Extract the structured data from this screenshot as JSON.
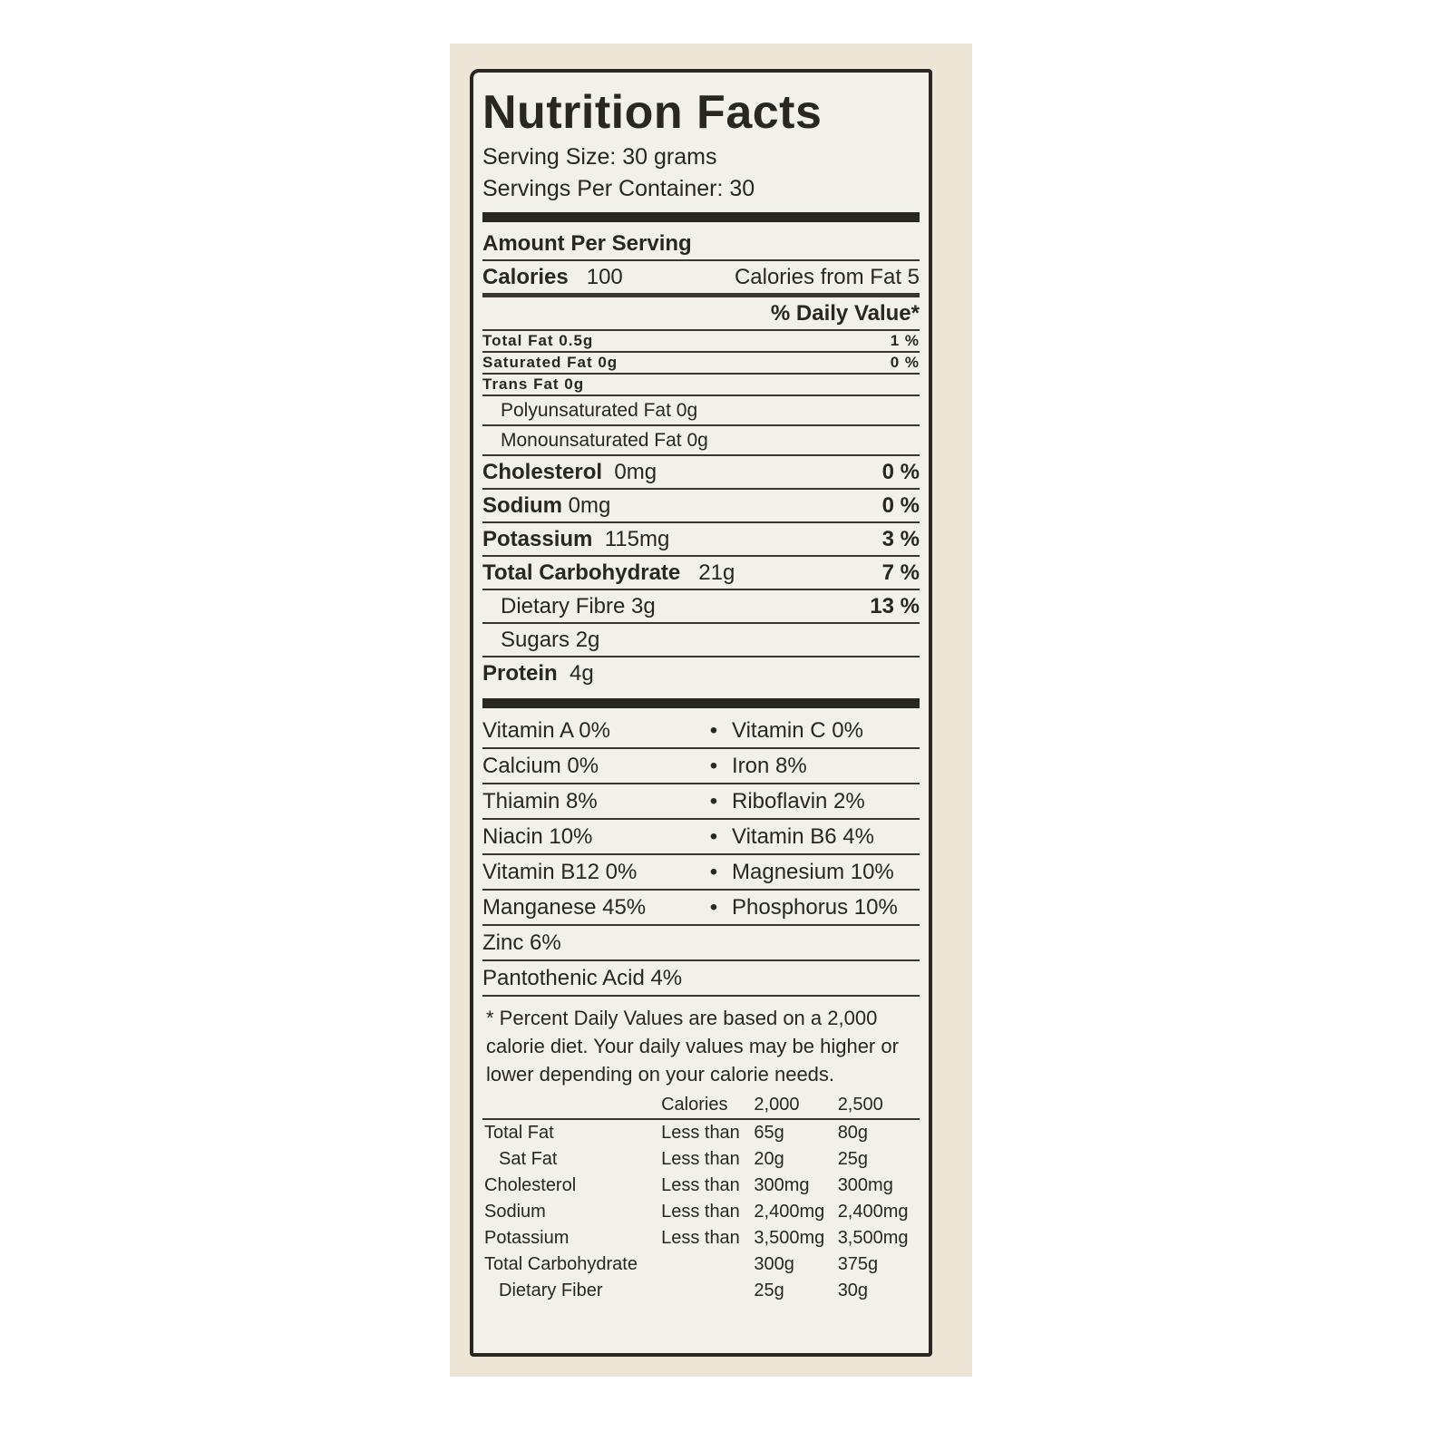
{
  "title": "Nutrition Facts",
  "serving_size": "Serving Size:  30 grams",
  "servings_per_container": "Servings Per Container: 30",
  "amount_per_serving": "Amount Per Serving",
  "calories_label": "Calories",
  "calories_value": "100",
  "calories_from_fat": "Calories from Fat 5",
  "daily_value_header": "% Daily Value*",
  "nutrients": [
    {
      "name": "Total Fat 0.5g",
      "dv": "1 %"
    },
    {
      "name": "Saturated Fat 0g",
      "dv": "0 %"
    },
    {
      "name": "Trans  Fat 0g",
      "dv": ""
    },
    {
      "name": "Polyunsaturated Fat 0g",
      "dv": ""
    },
    {
      "name": "Monounsaturated Fat 0g",
      "dv": ""
    },
    {
      "name": "Cholesterol",
      "amount": "0mg",
      "dv": "0 %"
    },
    {
      "name": "Sodium",
      "amount": "0mg",
      "dv": "0 %"
    },
    {
      "name": "Potassium",
      "amount": "115mg",
      "dv": "3 %"
    },
    {
      "name": "Total Carbohydrate",
      "amount": "21g",
      "dv": "7 %"
    },
    {
      "name": "Dietary Fibre 3g",
      "dv": "13 %"
    },
    {
      "name": "Sugars 2g",
      "dv": ""
    },
    {
      "name": "Protein",
      "amount": "4g",
      "dv": ""
    }
  ],
  "bullet": "•",
  "vitamins": [
    [
      "Vitamin A  0%",
      "Vitamin C 0%"
    ],
    [
      "Calcium 0%",
      "Iron 8%"
    ],
    [
      "Thiamin 8%",
      "Riboflavin 2%"
    ],
    [
      "Niacin 10%",
      "Vitamin B6 4%"
    ],
    [
      "Vitamin B12 0%",
      "Magnesium 10%"
    ],
    [
      "Manganese 45%",
      "Phosphorus 10%"
    ],
    [
      "Zinc     6%",
      ""
    ],
    [
      "Pantothenic Acid 4%",
      ""
    ]
  ],
  "footnote": "* Percent Daily Values are based on a 2,000 calorie diet. Your daily values may be higher or lower depending on your calorie needs.",
  "reference_table": {
    "headers": [
      "",
      "Calories",
      "2,000",
      "2,500"
    ],
    "rows": [
      [
        "Total Fat",
        "Less than",
        "65g",
        "80g"
      ],
      [
        "Sat Fat",
        "Less than",
        "20g",
        "25g"
      ],
      [
        "Cholesterol",
        "Less than",
        "300mg",
        "300mg"
      ],
      [
        "Sodium",
        "Less than",
        "2,400mg",
        "2,400mg"
      ],
      [
        "Potassium",
        "Less than",
        "3,500mg",
        "3,500mg"
      ],
      [
        "Total Carbohydrate",
        "",
        "300g",
        "375g"
      ],
      [
        "Dietary Fiber",
        "",
        "25g",
        "30g"
      ]
    ]
  }
}
